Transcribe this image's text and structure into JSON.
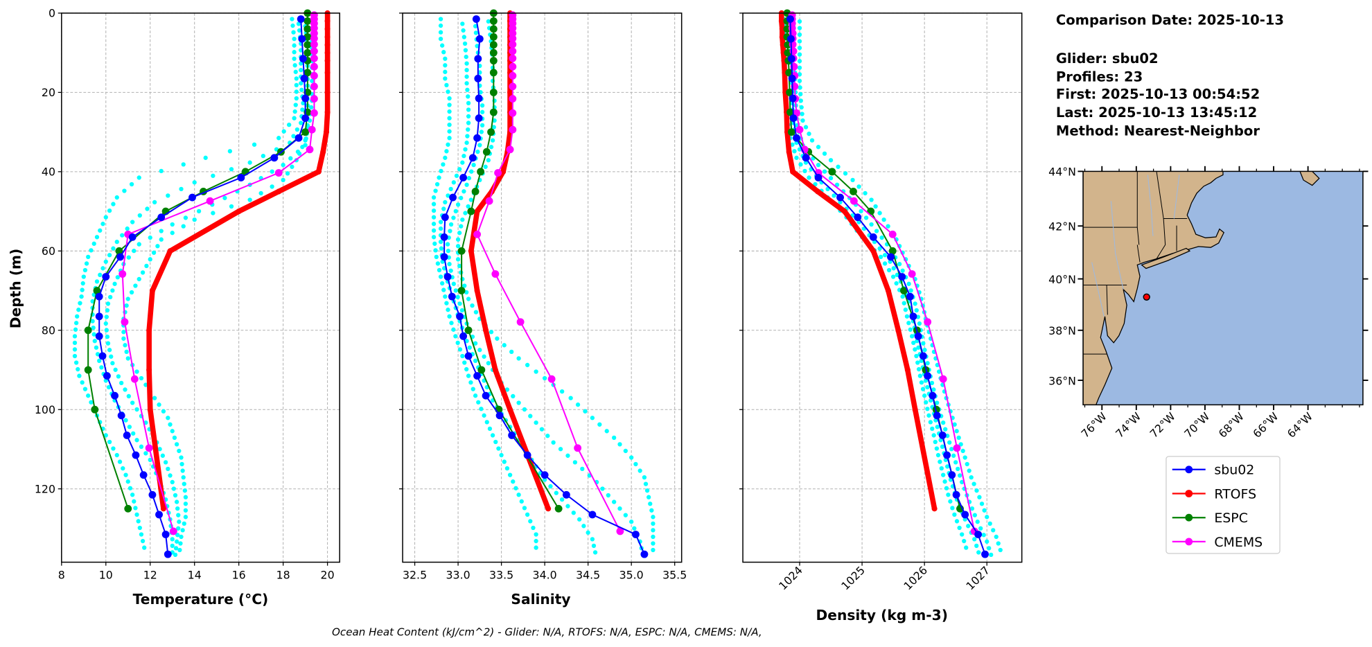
{
  "info": {
    "comparison_date": "Comparison Date: 2025-10-13",
    "glider": "Glider: sbu02",
    "profiles": "Profiles: 23",
    "first": "First: 2025-10-13 00:54:52",
    "last": "Last: 2025-10-13 13:45:12",
    "method": "Method: Nearest-Neighbor"
  },
  "footer": "Ocean Heat Content (kJ/cm^2) - Glider: N/A,  RTOFS: N/A,  ESPC: N/A,  CMEMS: N/A,",
  "colors": {
    "glider_profiles": "#00ffff",
    "sbu02": "#0000ff",
    "RTOFS": "#ff0000",
    "ESPC": "#008000",
    "CMEMS": "#ff00ff",
    "land": "#d2b48c",
    "ocean": "#9cb9e2"
  },
  "legend": {
    "placement": "below-map",
    "entries": [
      "sbu02",
      "RTOFS",
      "ESPC",
      "CMEMS"
    ]
  },
  "chart_data": [
    {
      "type": "line",
      "id": "temperature",
      "xlabel": "Temperature (°C)",
      "ylabel": "Depth (m)",
      "xlim": [
        8,
        20.55
      ],
      "ylim": [
        138.5,
        0
      ],
      "xticks": [
        "8",
        "10",
        "12",
        "14",
        "16",
        "18",
        "20"
      ],
      "yticks": [
        "0",
        "20",
        "40",
        "60",
        "80",
        "100",
        "120"
      ],
      "grid": true,
      "glider_profiles": [
        [
          18.4,
          18.5,
          18.5,
          18.6,
          18.6,
          18.5,
          17.8,
          14.5,
          11.5,
          10.5,
          10.0,
          9.6,
          9.2,
          9.0,
          8.9,
          8.7,
          8.6,
          8.6,
          8.8,
          9.2,
          9.6,
          10.0,
          10.5,
          10.9,
          11.2,
          11.4,
          11.6,
          11.8
        ],
        [
          19.3,
          19.3,
          19.3,
          19.3,
          19.3,
          19.2,
          19.0,
          18.6,
          18.0,
          16.5,
          14.0,
          12.5,
          12.0,
          11.5,
          11.0,
          10.8,
          10.8,
          11.0,
          11.6,
          12.2,
          12.8,
          13.1,
          13.4,
          13.5,
          13.6,
          13.6,
          13.4,
          13.3
        ],
        [
          18.7,
          18.8,
          18.8,
          18.8,
          18.9,
          18.8,
          18.3,
          16.5,
          14.0,
          12.2,
          11.2,
          10.5,
          10.0,
          9.6,
          9.4,
          9.4,
          9.5,
          9.7,
          10.0,
          10.4,
          10.9,
          11.4,
          12.0,
          12.4,
          12.7,
          12.9,
          13.0,
          13.0
        ],
        [
          19.0,
          19.1,
          19.1,
          19.1,
          19.1,
          19.1,
          19.0,
          18.0,
          16.5,
          14.8,
          13.0,
          11.5,
          10.8,
          10.4,
          10.1,
          10.0,
          10.1,
          10.3,
          10.7,
          11.2,
          11.8,
          12.3,
          12.7,
          13.0,
          13.2,
          13.3,
          13.2,
          13.1
        ]
      ],
      "series": [
        {
          "name": "sbu02",
          "values": [
            18.8,
            18.85,
            18.9,
            18.95,
            19.0,
            19.0,
            18.7,
            17.6,
            16.1,
            13.9,
            12.5,
            11.2,
            10.65,
            10.0,
            9.7,
            9.7,
            9.7,
            9.85,
            10.05,
            10.4,
            10.7,
            10.95,
            11.35,
            11.7,
            12.1,
            12.4,
            12.7,
            12.8
          ]
        },
        {
          "name": "RTOFS",
          "values": [
            20,
            20,
            20,
            20,
            20,
            20,
            20,
            20,
            20,
            20,
            19.95,
            19.8,
            19.6,
            17.8,
            16.0,
            12.9,
            12.1,
            11.95,
            11.95,
            12.0,
            12.6
          ]
        },
        {
          "name": "ESPC",
          "values": [
            19.1,
            19.1,
            19.1,
            19.1,
            19.1,
            19.1,
            19.1,
            19.1,
            19.1,
            19.1,
            19.0,
            17.9,
            16.3,
            14.4,
            12.7,
            10.6,
            9.6,
            9.2,
            9.2,
            9.5,
            11.0
          ]
        },
        {
          "name": "CMEMS",
          "values": [
            19.4,
            19.4,
            19.4,
            19.4,
            19.4,
            19.4,
            19.4,
            19.4,
            19.4,
            19.4,
            19.4,
            19.4,
            19.4,
            19.4,
            19.3,
            19.2,
            17.8,
            14.7,
            11.0,
            10.75,
            10.85,
            11.3,
            11.95,
            13.05
          ]
        }
      ]
    },
    {
      "type": "line",
      "id": "salinity",
      "xlabel": "Salinity",
      "xlim": [
        32.36,
        35.58
      ],
      "ylim": [
        138.5,
        0
      ],
      "xticks": [
        "32.5",
        "33.0",
        "33.5",
        "34.0",
        "34.5",
        "35.0",
        "35.5"
      ],
      "grid": true,
      "glider_profiles": [
        [
          32.8,
          32.8,
          32.85,
          32.85,
          32.9,
          32.9,
          32.9,
          32.85,
          32.78,
          32.72,
          32.72,
          32.72,
          32.75,
          32.8,
          32.85,
          32.9,
          32.97,
          33.05,
          33.12,
          33.2,
          33.3,
          33.4,
          33.5,
          33.6,
          33.7,
          33.8,
          33.9,
          33.9
        ],
        [
          33.35,
          33.38,
          33.4,
          33.4,
          33.42,
          33.42,
          33.4,
          33.35,
          33.25,
          33.15,
          33.05,
          33.0,
          33.0,
          33.05,
          33.12,
          33.25,
          33.45,
          33.7,
          34.0,
          34.3,
          34.55,
          34.8,
          35.0,
          35.15,
          35.2,
          35.25,
          35.25,
          35.25
        ],
        [
          33.05,
          33.08,
          33.1,
          33.1,
          33.12,
          33.12,
          33.1,
          33.05,
          32.95,
          32.85,
          32.8,
          32.8,
          32.82,
          32.88,
          32.95,
          33.02,
          33.1,
          33.2,
          33.3,
          33.4,
          33.55,
          33.7,
          33.85,
          34.0,
          34.2,
          34.4,
          34.55,
          34.6
        ],
        [
          33.2,
          33.22,
          33.25,
          33.25,
          33.28,
          33.28,
          33.25,
          33.18,
          33.1,
          33.0,
          32.92,
          32.88,
          32.9,
          32.95,
          33.02,
          33.1,
          33.2,
          33.35,
          33.5,
          33.7,
          33.9,
          34.1,
          34.35,
          34.6,
          34.8,
          35.0,
          35.1,
          35.15
        ]
      ],
      "series": [
        {
          "name": "sbu02",
          "values": [
            33.21,
            33.25,
            33.23,
            33.23,
            33.24,
            33.24,
            33.22,
            33.17,
            33.06,
            32.94,
            32.85,
            32.84,
            32.84,
            32.88,
            32.93,
            33.02,
            33.06,
            33.12,
            33.22,
            33.32,
            33.48,
            33.62,
            33.8,
            34.0,
            34.25,
            34.55,
            35.05,
            35.15
          ]
        },
        {
          "name": "RTOFS",
          "values": [
            33.6,
            33.6,
            33.6,
            33.6,
            33.6,
            33.6,
            33.6,
            33.6,
            33.6,
            33.6,
            33.6,
            33.57,
            33.52,
            33.39,
            33.22,
            33.15,
            33.22,
            33.32,
            33.43,
            33.6,
            34.04
          ]
        },
        {
          "name": "ESPC",
          "values": [
            33.41,
            33.41,
            33.41,
            33.41,
            33.41,
            33.41,
            33.41,
            33.41,
            33.41,
            33.41,
            33.38,
            33.33,
            33.26,
            33.2,
            33.15,
            33.04,
            33.04,
            33.12,
            33.27,
            33.47,
            34.16
          ]
        },
        {
          "name": "CMEMS",
          "values": [
            33.63,
            33.63,
            33.63,
            33.63,
            33.63,
            33.63,
            33.63,
            33.63,
            33.63,
            33.63,
            33.63,
            33.63,
            33.63,
            33.63,
            33.63,
            33.6,
            33.46,
            33.36,
            33.22,
            33.43,
            33.72,
            34.08,
            34.38,
            34.87
          ]
        }
      ]
    },
    {
      "type": "line",
      "id": "density",
      "xlabel": "Density (kg m-3)",
      "xlim": [
        1023.09,
        1027.56
      ],
      "ylim": [
        138.5,
        0
      ],
      "xticks": [
        "1024",
        "1025",
        "1026",
        "1027"
      ],
      "grid": true,
      "glider_profiles": [
        [
          1023.75,
          1023.75,
          1023.76,
          1023.77,
          1023.78,
          1023.8,
          1023.85,
          1023.95,
          1024.15,
          1024.45,
          1024.75,
          1025.0,
          1025.3,
          1025.5,
          1025.65,
          1025.72,
          1025.8,
          1025.87,
          1025.93,
          1026.0,
          1026.07,
          1026.15,
          1026.22,
          1026.3,
          1026.38,
          1026.48,
          1026.6,
          1026.7
        ],
        [
          1024.0,
          1024.0,
          1024.0,
          1024.0,
          1024.02,
          1024.05,
          1024.2,
          1024.5,
          1024.85,
          1025.15,
          1025.35,
          1025.55,
          1025.7,
          1025.85,
          1025.95,
          1026.02,
          1026.1,
          1026.18,
          1026.26,
          1026.35,
          1026.45,
          1026.55,
          1026.65,
          1026.75,
          1026.88,
          1027.0,
          1027.15,
          1027.25
        ],
        [
          1023.85,
          1023.86,
          1023.87,
          1023.88,
          1023.88,
          1023.9,
          1023.95,
          1024.1,
          1024.35,
          1024.65,
          1024.95,
          1025.2,
          1025.45,
          1025.62,
          1025.75,
          1025.82,
          1025.88,
          1025.95,
          1026.02,
          1026.1,
          1026.18,
          1026.26,
          1026.34,
          1026.42,
          1026.52,
          1026.65,
          1026.8,
          1026.9
        ],
        [
          1023.9,
          1023.9,
          1023.92,
          1023.93,
          1023.94,
          1023.96,
          1024.05,
          1024.3,
          1024.6,
          1024.9,
          1025.15,
          1025.4,
          1025.6,
          1025.75,
          1025.85,
          1025.92,
          1025.98,
          1026.05,
          1026.12,
          1026.2,
          1026.3,
          1026.4,
          1026.5,
          1026.6,
          1026.72,
          1026.85,
          1027.0,
          1027.1
        ]
      ],
      "series": [
        {
          "name": "sbu02",
          "values": [
            1023.85,
            1023.86,
            1023.87,
            1023.88,
            1023.89,
            1023.9,
            1023.95,
            1024.1,
            1024.3,
            1024.65,
            1024.93,
            1025.18,
            1025.46,
            1025.64,
            1025.77,
            1025.82,
            1025.9,
            1025.98,
            1026.05,
            1026.13,
            1026.2,
            1026.29,
            1026.36,
            1026.44,
            1026.51,
            1026.65,
            1026.86,
            1026.97
          ]
        },
        {
          "name": "RTOFS",
          "values": [
            1023.71,
            1023.71,
            1023.72,
            1023.72,
            1023.73,
            1023.74,
            1023.75,
            1023.76,
            1023.77,
            1023.79,
            1023.8,
            1023.83,
            1023.89,
            1024.29,
            1024.72,
            1025.18,
            1025.42,
            1025.58,
            1025.73,
            1025.85,
            1026.16
          ]
        },
        {
          "name": "ESPC",
          "values": [
            1023.8,
            1023.8,
            1023.8,
            1023.8,
            1023.81,
            1023.81,
            1023.82,
            1023.83,
            1023.84,
            1023.85,
            1023.87,
            1024.14,
            1024.52,
            1024.86,
            1025.14,
            1025.49,
            1025.67,
            1025.88,
            1026.02,
            1026.19,
            1026.57
          ]
        },
        {
          "name": "CMEMS",
          "values": [
            1023.88,
            1023.88,
            1023.88,
            1023.88,
            1023.89,
            1023.89,
            1023.89,
            1023.9,
            1023.9,
            1023.91,
            1023.92,
            1023.92,
            1023.93,
            1023.95,
            1024.0,
            1024.08,
            1024.3,
            1024.87,
            1025.49,
            1025.8,
            1026.05,
            1026.3,
            1026.52,
            1026.8
          ]
        }
      ]
    }
  ],
  "depths": {
    "sbu02": [
      1.5,
      6.5,
      11.5,
      16.5,
      21.5,
      26.5,
      31.5,
      36.5,
      41.5,
      46.5,
      51.5,
      56.5,
      61.5,
      66.5,
      71.5,
      76.5,
      81.5,
      86.5,
      91.5,
      96.5,
      101.5,
      106.5,
      111.5,
      116.5,
      121.5,
      126.5,
      131.5,
      136.5
    ],
    "RTOFS": [
      0,
      2,
      4,
      6,
      8,
      10,
      12,
      15,
      20,
      25,
      30,
      35,
      40,
      45,
      50,
      60,
      70,
      80,
      90,
      100,
      125
    ],
    "ESPC": [
      0,
      2,
      4,
      6,
      8,
      10,
      12,
      15,
      20,
      25,
      30,
      35,
      40,
      45,
      50,
      60,
      70,
      80,
      90,
      100,
      125
    ],
    "CMEMS": [
      0.5,
      1.5,
      2.6,
      3.8,
      5.1,
      6.4,
      7.9,
      9.6,
      11.4,
      13.5,
      15.8,
      18.5,
      21.6,
      25.2,
      29.4,
      34.4,
      40.3,
      47.4,
      55.8,
      65.8,
      77.9,
      92.3,
      109.7,
      130.7
    ]
  },
  "map": {
    "lon_range": [
      -77.1,
      -60.8
    ],
    "lat_range": [
      35,
      44
    ],
    "lon_ticks": [
      "76°W",
      "74°W",
      "72°W",
      "70°W",
      "68°W",
      "66°W",
      "64°W"
    ],
    "lat_ticks": [
      "44°N",
      "42°N",
      "40°N",
      "38°N",
      "36°N"
    ],
    "glider_position": {
      "lon": -73.4,
      "lat": 39.3
    }
  }
}
